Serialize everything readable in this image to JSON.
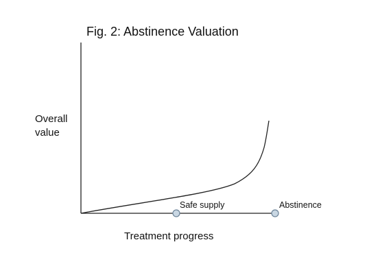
{
  "figure": {
    "title": "Fig. 2: Abstinence Valuation",
    "y_axis_label": [
      "Overall",
      "value"
    ],
    "x_axis_label": "Treatment progress",
    "points": [
      {
        "label": "Safe supply"
      },
      {
        "label": "Abstinence"
      }
    ],
    "colors": {
      "line": "#222222",
      "marker_fill": "#c9d7e3",
      "marker_stroke": "#6d8499"
    }
  }
}
